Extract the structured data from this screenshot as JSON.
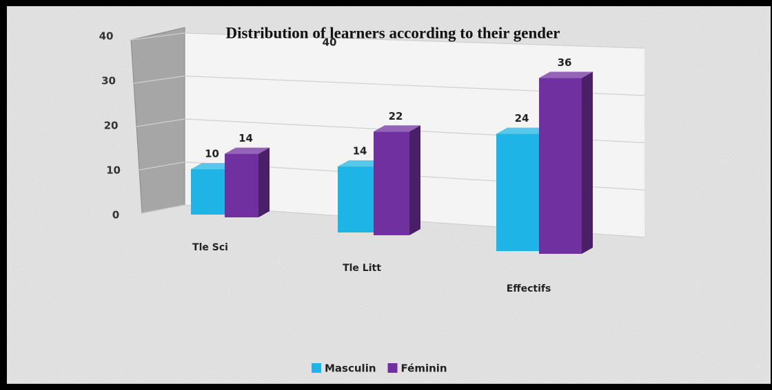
{
  "chart_data": {
    "type": "bar3d",
    "title": "Distribution of learners according to their gender",
    "annotations": [
      "40"
    ],
    "categories": [
      "Tle Sci",
      "Tle Litt",
      "Effectifs"
    ],
    "series": [
      {
        "name": "Masculin",
        "color": "#1fb4e6",
        "values": [
          10,
          14,
          24
        ]
      },
      {
        "name": "Féminin",
        "color": "#7030a0",
        "values": [
          14,
          22,
          36
        ]
      }
    ],
    "ylim": [
      0,
      40
    ],
    "yticks": [
      0,
      10,
      20,
      30,
      40
    ],
    "grid": true,
    "legend": "bottom"
  }
}
